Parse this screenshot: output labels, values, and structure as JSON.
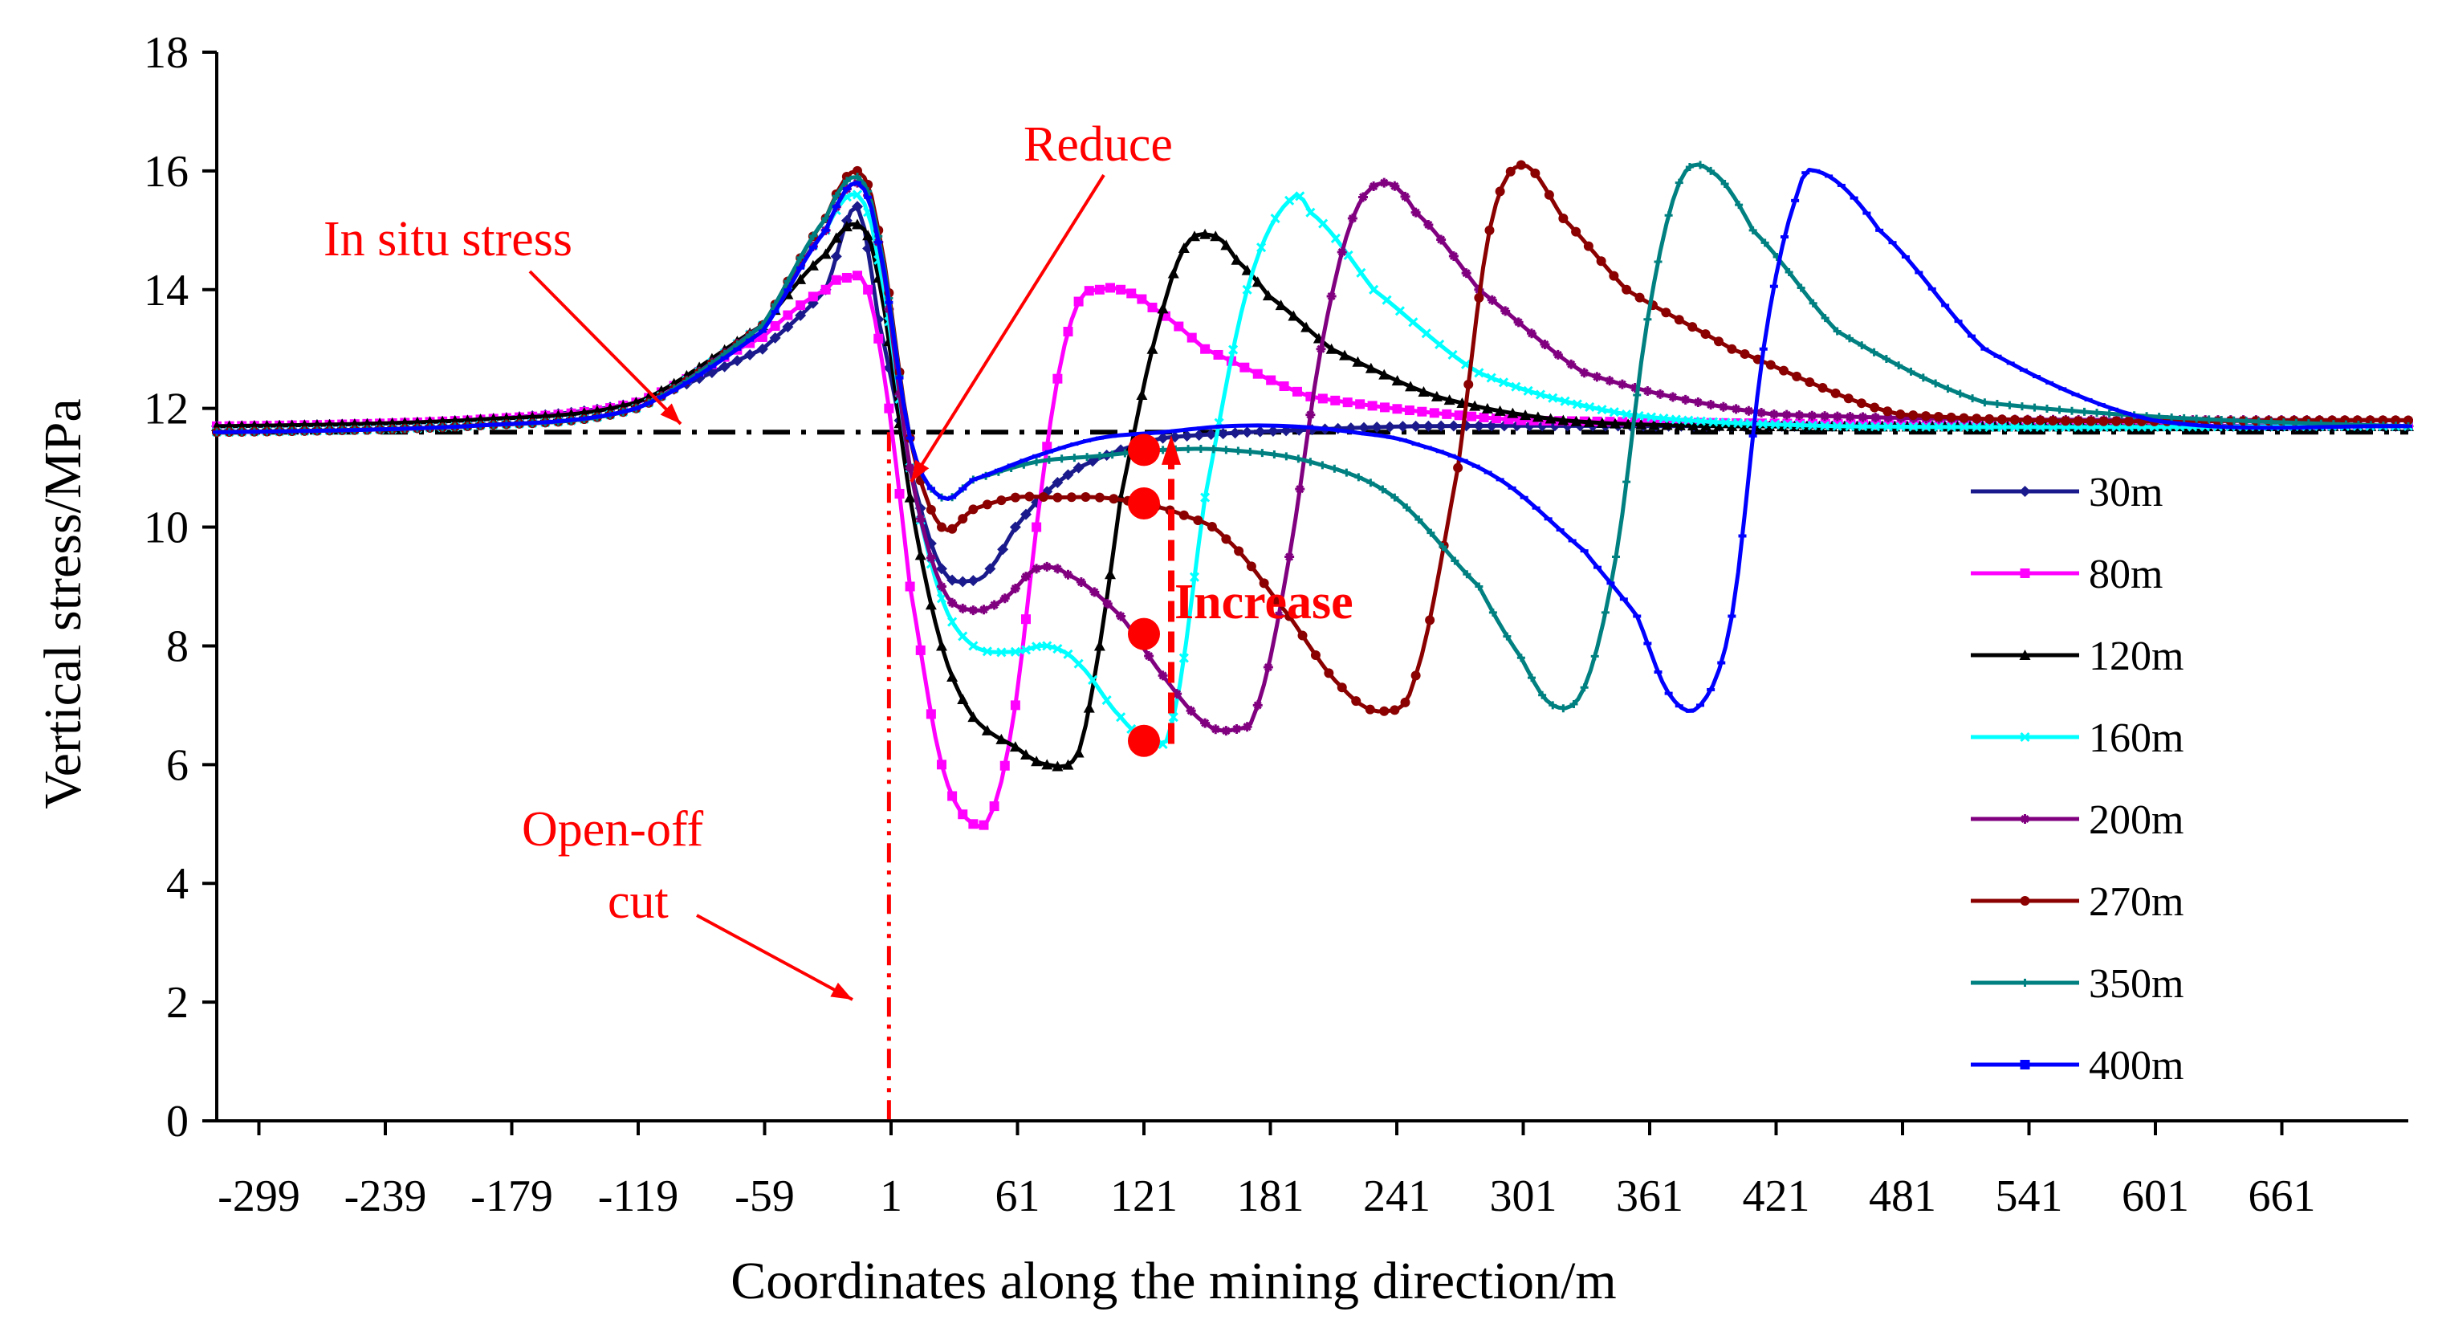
{
  "chart_data": {
    "type": "line",
    "title": "",
    "xlabel": "Coordinates along the mining direction/m",
    "ylabel": "Vertical stress/MPa",
    "xlim": [
      -319,
      721
    ],
    "ylim": [
      0,
      18
    ],
    "x_ticks": [
      -299,
      -239,
      -179,
      -119,
      -59,
      1,
      61,
      121,
      181,
      241,
      301,
      361,
      421,
      481,
      541,
      601,
      661
    ],
    "y_ticks": [
      0,
      2,
      4,
      6,
      8,
      10,
      12,
      14,
      16,
      18
    ],
    "in_situ_stress": 11.6,
    "open_off_cut_x": 0,
    "legend_position": "right",
    "series": [
      {
        "name": "30m",
        "color": "#1a1a8c",
        "marker": "diamond",
        "x": [
          -319,
          -200,
          -120,
          -60,
          -30,
          -15,
          -5,
          10,
          25,
          40,
          48,
          60,
          75,
          90,
          110,
          130,
          170,
          250,
          400,
          721
        ],
        "y": [
          11.7,
          11.8,
          12.1,
          13.0,
          14.0,
          15.4,
          13.5,
          11.0,
          9.3,
          9.1,
          9.3,
          10.0,
          10.6,
          11.0,
          11.3,
          11.5,
          11.6,
          11.7,
          11.7,
          11.7
        ]
      },
      {
        "name": "80m",
        "color": "#ff00ff",
        "marker": "square",
        "x": [
          -319,
          -200,
          -120,
          -60,
          -30,
          -20,
          -10,
          0,
          10,
          25,
          40,
          50,
          60,
          70,
          80,
          90,
          100,
          110,
          125,
          150,
          200,
          300,
          721
        ],
        "y": [
          11.7,
          11.8,
          12.1,
          13.2,
          14.0,
          14.2,
          14.0,
          12.0,
          9.0,
          6.0,
          5.0,
          5.3,
          7.0,
          10.0,
          12.5,
          13.8,
          14.0,
          14.0,
          13.7,
          13.0,
          12.2,
          11.8,
          11.7
        ]
      },
      {
        "name": "120m",
        "color": "#000000",
        "marker": "triangle",
        "x": [
          -319,
          -200,
          -120,
          -60,
          -30,
          -15,
          -5,
          10,
          25,
          40,
          60,
          75,
          90,
          100,
          110,
          125,
          140,
          155,
          165,
          180,
          210,
          260,
          320,
          400,
          721
        ],
        "y": [
          11.7,
          11.8,
          12.1,
          13.4,
          14.6,
          15.1,
          14.2,
          10.5,
          8.0,
          6.8,
          6.3,
          6.0,
          6.2,
          8.0,
          10.5,
          13.0,
          14.7,
          14.9,
          14.5,
          13.9,
          13.0,
          12.2,
          11.8,
          11.7,
          11.7
        ]
      },
      {
        "name": "160m",
        "color": "#00ffff",
        "marker": "x",
        "x": [
          -319,
          -200,
          -120,
          -60,
          -30,
          -15,
          -5,
          10,
          25,
          40,
          60,
          75,
          90,
          110,
          125,
          135,
          150,
          170,
          190,
          200,
          230,
          280,
          350,
          450,
          721
        ],
        "y": [
          11.6,
          11.7,
          12.0,
          13.4,
          15.0,
          15.6,
          14.5,
          11.0,
          8.8,
          8.0,
          7.9,
          8.0,
          7.7,
          6.8,
          6.4,
          6.8,
          10.5,
          14.0,
          15.5,
          15.3,
          14.0,
          12.6,
          11.9,
          11.7,
          11.7
        ]
      },
      {
        "name": "200m",
        "color": "#800080",
        "marker": "star",
        "x": [
          -319,
          -200,
          -120,
          -60,
          -30,
          -15,
          -5,
          10,
          25,
          40,
          55,
          70,
          85,
          110,
          130,
          150,
          165,
          175,
          190,
          205,
          220,
          235,
          250,
          280,
          330,
          420,
          721
        ],
        "y": [
          11.6,
          11.7,
          12.0,
          13.4,
          15.0,
          15.8,
          14.8,
          11.0,
          9.0,
          8.6,
          8.8,
          9.3,
          9.2,
          8.5,
          7.5,
          6.7,
          6.6,
          7.0,
          9.5,
          13.0,
          15.2,
          15.8,
          15.3,
          14.0,
          12.6,
          11.9,
          11.8
        ]
      },
      {
        "name": "270m",
        "color": "#8b0000",
        "marker": "circle",
        "x": [
          -319,
          -200,
          -120,
          -60,
          -30,
          -15,
          -5,
          10,
          25,
          40,
          60,
          80,
          100,
          120,
          140,
          160,
          190,
          215,
          235,
          250,
          270,
          285,
          300,
          320,
          350,
          400,
          480,
          721
        ],
        "y": [
          11.6,
          11.7,
          12.0,
          13.4,
          15.2,
          16.0,
          15.0,
          11.5,
          10.0,
          10.3,
          10.5,
          10.5,
          10.5,
          10.4,
          10.2,
          9.8,
          8.5,
          7.3,
          6.9,
          7.5,
          11.0,
          15.0,
          16.1,
          15.2,
          14.0,
          13.0,
          11.9,
          11.8
        ]
      },
      {
        "name": "350m",
        "color": "#008080",
        "marker": "plus",
        "x": [
          -319,
          -200,
          -120,
          -60,
          -30,
          -15,
          -5,
          10,
          25,
          40,
          70,
          100,
          130,
          160,
          200,
          240,
          280,
          300,
          315,
          330,
          345,
          360,
          375,
          390,
          410,
          450,
          520,
          721
        ],
        "y": [
          11.6,
          11.7,
          12.0,
          13.4,
          15.2,
          15.9,
          14.9,
          11.5,
          10.5,
          10.8,
          11.1,
          11.2,
          11.3,
          11.3,
          11.1,
          10.5,
          9.0,
          7.8,
          7.0,
          7.3,
          9.5,
          13.5,
          15.8,
          16.0,
          15.0,
          13.3,
          12.1,
          11.7
        ]
      },
      {
        "name": "400m",
        "color": "#0000ff",
        "marker": "dash",
        "x": [
          -319,
          -200,
          -120,
          -60,
          -30,
          -15,
          -5,
          10,
          25,
          40,
          70,
          100,
          130,
          160,
          190,
          220,
          250,
          290,
          330,
          355,
          370,
          385,
          400,
          415,
          430,
          440,
          470,
          520,
          600,
          721
        ],
        "y": [
          11.6,
          11.7,
          12.0,
          13.3,
          15.0,
          15.8,
          14.8,
          11.5,
          10.5,
          10.8,
          11.2,
          11.5,
          11.6,
          11.7,
          11.7,
          11.6,
          11.4,
          10.8,
          9.6,
          8.5,
          7.2,
          7.0,
          8.5,
          13.0,
          15.5,
          16.0,
          15.0,
          13.0,
          11.8,
          11.7
        ]
      }
    ],
    "highlight_points": {
      "x": 121,
      "y": [
        11.3,
        10.4,
        8.2,
        6.4
      ]
    }
  },
  "annotations": {
    "in_situ_stress": "In situ stress",
    "reduce": "Reduce",
    "increase": "Increase",
    "open_off": "Open-off",
    "cut": "cut"
  }
}
